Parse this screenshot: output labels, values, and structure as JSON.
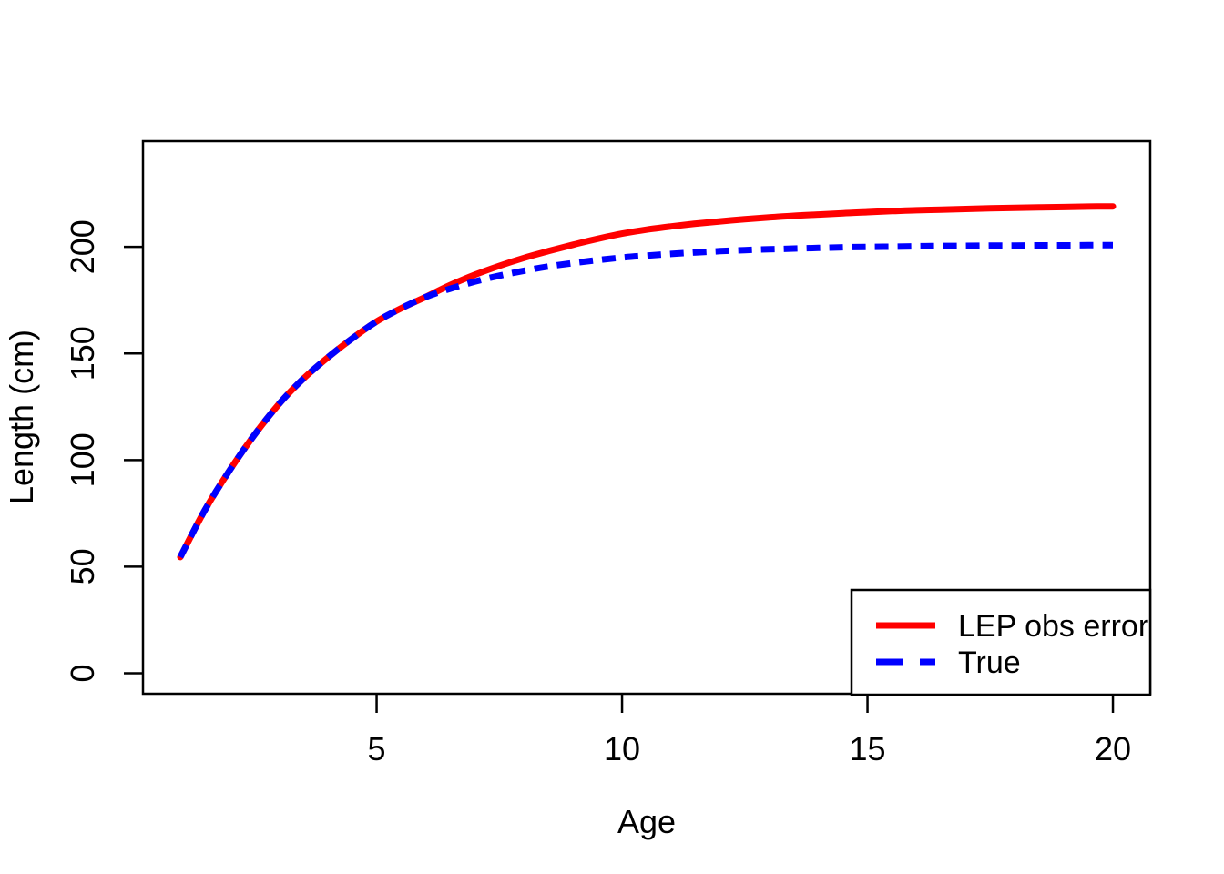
{
  "chart_data": {
    "type": "line",
    "title": "",
    "xlabel": "Age",
    "ylabel": "Length (cm)",
    "xlim": [
      0.24,
      20.76
    ],
    "ylim": [
      -9.6,
      249.6
    ],
    "x_ticks": [
      5,
      10,
      15,
      20
    ],
    "y_ticks": [
      0,
      50,
      100,
      150,
      200
    ],
    "grid": false,
    "background": "#ffffff",
    "axis_color": "#000000",
    "legend": {
      "position": "bottom-right",
      "border": true
    },
    "x": [
      1,
      1.5,
      2,
      2.5,
      3,
      3.5,
      4,
      4.5,
      5,
      5.5,
      6,
      6.5,
      7,
      7.5,
      8,
      8.5,
      9,
      9.5,
      10,
      10.5,
      11,
      11.5,
      12,
      12.5,
      13,
      13.5,
      14,
      14.5,
      15,
      15.5,
      16,
      16.5,
      17,
      17.5,
      18,
      18.5,
      19,
      19.5,
      20
    ],
    "series": [
      {
        "name": "LEP obs error",
        "color": "#ff0000",
        "style": "solid",
        "line_width": 7,
        "asymptote": 220,
        "values": [
          54.5,
          76.5,
          95,
          111.5,
          126,
          138,
          148,
          157,
          165,
          171.2,
          176.5,
          182.1,
          186.9,
          191.1,
          194.8,
          198,
          201,
          203.8,
          206.2,
          208.1,
          209.6,
          210.9,
          212,
          213,
          213.8,
          214.6,
          215.2,
          215.8,
          216.3,
          216.8,
          217.2,
          217.5,
          217.8,
          218.1,
          218.3,
          218.5,
          218.7,
          218.9,
          219
        ]
      },
      {
        "name": "True",
        "color": "#0000ff",
        "style": "dashed",
        "line_width": 7,
        "asymptote": 201,
        "values": [
          54.5,
          76.5,
          95,
          111.5,
          126,
          138,
          148,
          157,
          165,
          171.2,
          176.5,
          180.4,
          183.7,
          186.5,
          188.8,
          190.8,
          192.4,
          193.8,
          195,
          195.9,
          196.7,
          197.4,
          198,
          198.5,
          198.9,
          199.2,
          199.5,
          199.8,
          200,
          200.1,
          200.3,
          200.4,
          200.5,
          200.6,
          200.6,
          200.7,
          200.7,
          200.8,
          200.8
        ]
      }
    ]
  }
}
